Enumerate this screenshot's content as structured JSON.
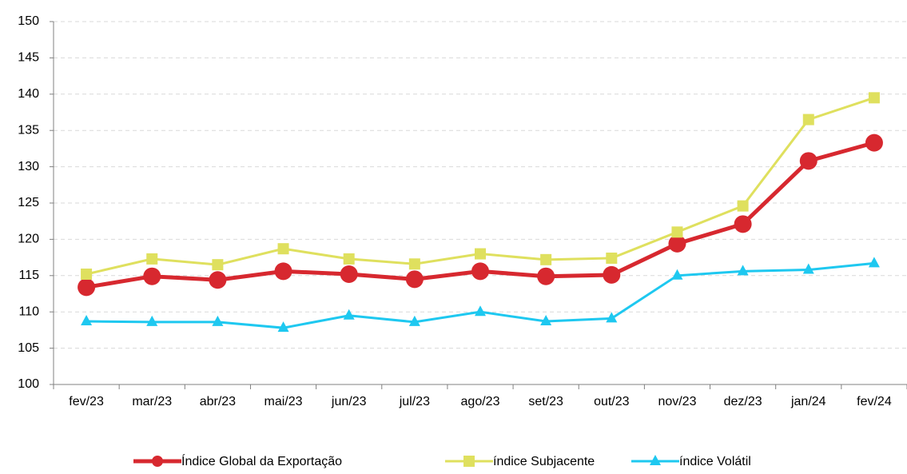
{
  "chart_data": {
    "type": "line",
    "categories": [
      "fev/23",
      "mar/23",
      "abr/23",
      "mai/23",
      "jun/23",
      "jul/23",
      "ago/23",
      "set/23",
      "out/23",
      "nov/23",
      "dez/23",
      "jan/24",
      "fev/24"
    ],
    "series": [
      {
        "name": "Índice Global da Exportação",
        "color": "#d7282f",
        "marker": "circle",
        "values": [
          113.4,
          114.9,
          114.4,
          115.6,
          115.2,
          114.5,
          115.6,
          114.9,
          115.1,
          119.4,
          122.1,
          130.8,
          133.3
        ]
      },
      {
        "name": "índice Subjacente",
        "color": "#dfe05e",
        "marker": "square",
        "values": [
          115.2,
          117.3,
          116.5,
          118.7,
          117.3,
          116.6,
          118.0,
          117.2,
          117.4,
          121.0,
          124.6,
          136.5,
          139.5
        ]
      },
      {
        "name": "índice Volátil",
        "color": "#1ec8f0",
        "marker": "triangle",
        "values": [
          108.7,
          108.6,
          108.6,
          107.8,
          109.5,
          108.6,
          110.0,
          108.7,
          109.1,
          115.0,
          115.6,
          115.8,
          116.7
        ]
      }
    ],
    "ylim": [
      100,
      150
    ],
    "yticks": [
      100,
      105,
      110,
      115,
      120,
      125,
      130,
      135,
      140,
      145,
      150
    ],
    "grid": true,
    "legend": "bottom"
  }
}
